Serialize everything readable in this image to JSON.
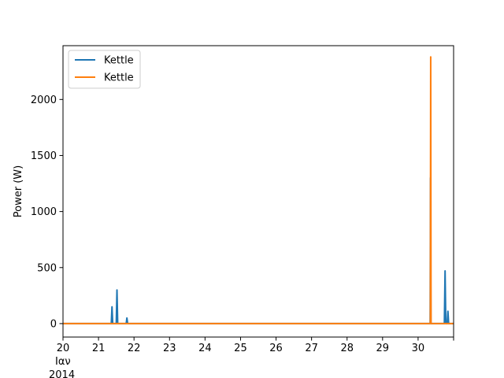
{
  "chart_data": {
    "type": "line",
    "title": "",
    "xlabel": "",
    "ylabel": "Power (W)",
    "xlim": [
      20,
      31
    ],
    "ylim": [
      -120,
      2480
    ],
    "x_ticks": [
      {
        "value": 20,
        "label": "20"
      },
      {
        "value": 21,
        "label": "21"
      },
      {
        "value": 22,
        "label": "22"
      },
      {
        "value": 23,
        "label": "23"
      },
      {
        "value": 24,
        "label": "24"
      },
      {
        "value": 25,
        "label": "25"
      },
      {
        "value": 26,
        "label": "26"
      },
      {
        "value": 27,
        "label": "27"
      },
      {
        "value": 28,
        "label": "28"
      },
      {
        "value": 29,
        "label": "29"
      },
      {
        "value": 30,
        "label": "30"
      }
    ],
    "x_sublabel": [
      "Ιαν",
      "2014"
    ],
    "y_ticks": [
      0,
      500,
      1000,
      1500,
      2000
    ],
    "legend": {
      "location": "upper-left"
    },
    "series": [
      {
        "name": "Kettle",
        "color": "#1f77b4",
        "points": [
          [
            20.0,
            0
          ],
          [
            21.36,
            0
          ],
          [
            21.38,
            150
          ],
          [
            21.4,
            0
          ],
          [
            21.5,
            0
          ],
          [
            21.52,
            300
          ],
          [
            21.54,
            0
          ],
          [
            21.78,
            0
          ],
          [
            21.8,
            50
          ],
          [
            21.82,
            0
          ],
          [
            30.34,
            0
          ],
          [
            30.35,
            1300
          ],
          [
            30.36,
            0
          ],
          [
            30.74,
            0
          ],
          [
            30.76,
            470
          ],
          [
            30.78,
            0
          ],
          [
            30.82,
            0
          ],
          [
            30.84,
            110
          ],
          [
            30.86,
            0
          ],
          [
            31.0,
            0
          ]
        ]
      },
      {
        "name": "Kettle",
        "color": "#ff7f0e",
        "points": [
          [
            20.0,
            0
          ],
          [
            30.345,
            0
          ],
          [
            30.355,
            2380
          ],
          [
            30.365,
            0
          ],
          [
            31.0,
            0
          ]
        ]
      }
    ]
  }
}
